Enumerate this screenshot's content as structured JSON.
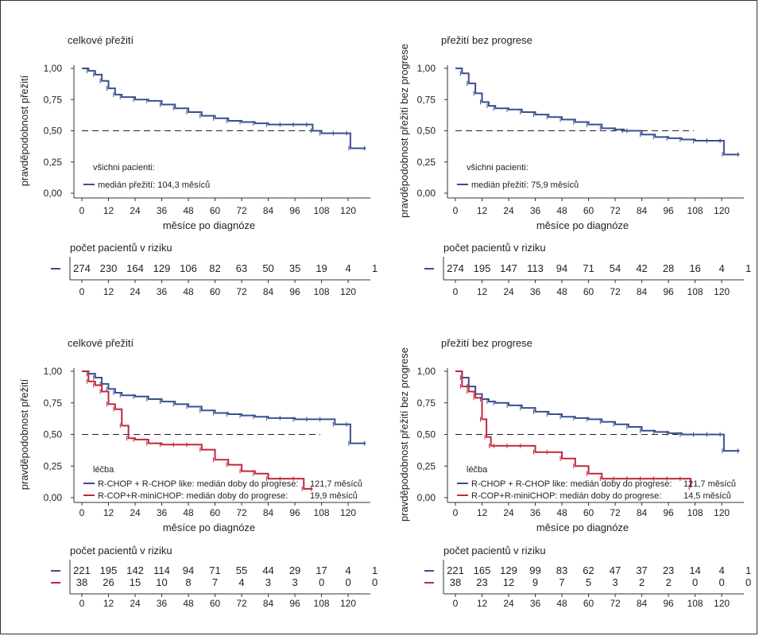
{
  "chart_data": [
    {
      "type": "line",
      "title": "celkové přežití",
      "xlabel": "měsíce po diagnóze",
      "ylabel": "pravděpodobnost přežití",
      "xlim": [
        0,
        130
      ],
      "ylim": [
        0,
        1
      ],
      "x_ticks": [
        "0",
        "12",
        "24",
        "36",
        "48",
        "60",
        "72",
        "84",
        "96",
        "108",
        "120"
      ],
      "y_ticks": [
        "0,00",
        "0,25",
        "0,50",
        "0,75",
        "1,00"
      ],
      "reference_line_y": 0.5,
      "legend": {
        "header": "všichni pacienti:",
        "entries": [
          {
            "label": "medián přežití: 104,3 měsíců",
            "value": ""
          }
        ]
      },
      "series": [
        {
          "name": "medián přežití: 104,3 měsíců",
          "color": "#3a4f8f",
          "x": [
            0,
            3,
            6,
            9,
            12,
            15,
            18,
            24,
            30,
            36,
            42,
            48,
            54,
            60,
            66,
            72,
            78,
            84,
            90,
            96,
            102,
            104,
            108,
            114,
            120,
            121,
            128
          ],
          "y": [
            1.0,
            0.98,
            0.95,
            0.9,
            0.84,
            0.79,
            0.77,
            0.75,
            0.74,
            0.71,
            0.68,
            0.65,
            0.62,
            0.6,
            0.58,
            0.57,
            0.56,
            0.55,
            0.55,
            0.55,
            0.55,
            0.5,
            0.48,
            0.48,
            0.48,
            0.36,
            0.36
          ]
        }
      ],
      "risk_table": {
        "title": "počet pacientů v riziku",
        "rows": [
          {
            "color": "#3a4f8f",
            "values": [
              "274",
              "230",
              "164",
              "129",
              "106",
              "82",
              "63",
              "50",
              "35",
              "19",
              "4",
              "1"
            ]
          }
        ]
      }
    },
    {
      "type": "line",
      "title": "přežití bez progrese",
      "xlabel": "měsíce po diagnóze",
      "ylabel": "pravděpodobnost přežití bez progrese",
      "xlim": [
        0,
        130
      ],
      "ylim": [
        0,
        1
      ],
      "x_ticks": [
        "0",
        "12",
        "24",
        "36",
        "48",
        "60",
        "72",
        "84",
        "96",
        "108",
        "120"
      ],
      "y_ticks": [
        "0,00",
        "0,25",
        "0,50",
        "0,75",
        "1,00"
      ],
      "reference_line_y": 0.5,
      "legend": {
        "header": "všichni pacienti:",
        "entries": [
          {
            "label": "medián přežití: 75,9 měsíců",
            "value": ""
          }
        ]
      },
      "series": [
        {
          "name": "medián přežití: 75,9 měsíců",
          "color": "#3a4f8f",
          "x": [
            0,
            3,
            6,
            9,
            12,
            15,
            18,
            24,
            30,
            36,
            42,
            48,
            54,
            60,
            66,
            72,
            76,
            78,
            84,
            90,
            96,
            102,
            108,
            114,
            120,
            121,
            128
          ],
          "y": [
            1.0,
            0.96,
            0.88,
            0.8,
            0.73,
            0.7,
            0.68,
            0.67,
            0.65,
            0.63,
            0.61,
            0.59,
            0.57,
            0.55,
            0.52,
            0.51,
            0.5,
            0.5,
            0.47,
            0.45,
            0.44,
            0.43,
            0.42,
            0.42,
            0.42,
            0.31,
            0.31
          ]
        }
      ],
      "risk_table": {
        "title": "počet pacientů v riziku",
        "rows": [
          {
            "color": "#3a4f8f",
            "values": [
              "274",
              "195",
              "147",
              "113",
              "94",
              "71",
              "54",
              "42",
              "28",
              "16",
              "4",
              "1"
            ]
          }
        ]
      }
    },
    {
      "type": "line",
      "title": "celkové přežití",
      "xlabel": "měsíce po diagnóze",
      "ylabel": "pravděpodobnost přežití",
      "xlim": [
        0,
        130
      ],
      "ylim": [
        0,
        1
      ],
      "x_ticks": [
        "0",
        "12",
        "24",
        "36",
        "48",
        "60",
        "72",
        "84",
        "96",
        "108",
        "120"
      ],
      "y_ticks": [
        "0,00",
        "0,25",
        "0,50",
        "0,75",
        "1,00"
      ],
      "reference_line_y": 0.5,
      "legend": {
        "header": "léčba",
        "entries": [
          {
            "label": "R-CHOP + R-CHOP like: medián doby do progrese:",
            "value": "121,7 měsíců"
          },
          {
            "label": "R-COP+R-miniCHOP: medián doby do progrese:",
            "value": "19,9 měsíců"
          }
        ]
      },
      "series": [
        {
          "name": "R-CHOP + R-CHOP like: medián doby do progrese:",
          "color": "#3a4f8f",
          "x": [
            0,
            3,
            6,
            9,
            12,
            15,
            18,
            24,
            30,
            36,
            42,
            48,
            54,
            60,
            66,
            72,
            78,
            84,
            90,
            96,
            102,
            108,
            114,
            120,
            121,
            128
          ],
          "y": [
            1.0,
            0.98,
            0.95,
            0.9,
            0.86,
            0.83,
            0.81,
            0.8,
            0.78,
            0.76,
            0.74,
            0.72,
            0.69,
            0.67,
            0.66,
            0.65,
            0.64,
            0.63,
            0.63,
            0.62,
            0.62,
            0.62,
            0.58,
            0.58,
            0.43,
            0.43
          ]
        },
        {
          "name": "R-COP+R-miniCHOP: medián doby do progrese:",
          "color": "#c0283a",
          "x": [
            0,
            3,
            6,
            9,
            12,
            15,
            18,
            21,
            24,
            30,
            36,
            42,
            48,
            54,
            60,
            66,
            72,
            78,
            84,
            90,
            96,
            100,
            104
          ],
          "y": [
            1.0,
            0.92,
            0.89,
            0.84,
            0.74,
            0.7,
            0.57,
            0.47,
            0.46,
            0.43,
            0.42,
            0.42,
            0.42,
            0.38,
            0.3,
            0.26,
            0.21,
            0.19,
            0.15,
            0.15,
            0.15,
            0.07,
            0.07
          ]
        }
      ],
      "risk_table": {
        "title": "počet pacientů v riziku",
        "rows": [
          {
            "color": "#3a4f8f",
            "values": [
              "221",
              "195",
              "142",
              "114",
              "94",
              "71",
              "55",
              "44",
              "29",
              "17",
              "4",
              "1"
            ]
          },
          {
            "color": "#c0283a",
            "values": [
              "38",
              "26",
              "15",
              "10",
              "8",
              "7",
              "4",
              "3",
              "3",
              "0",
              "0",
              "0"
            ]
          }
        ]
      }
    },
    {
      "type": "line",
      "title": "přežití bez progrese",
      "xlabel": "měsíce po diagnóze",
      "ylabel": "pravděpodobnost přežití bez progrese",
      "xlim": [
        0,
        130
      ],
      "ylim": [
        0,
        1
      ],
      "x_ticks": [
        "0",
        "12",
        "24",
        "36",
        "48",
        "60",
        "72",
        "84",
        "96",
        "108",
        "120"
      ],
      "y_ticks": [
        "0,00",
        "0,25",
        "0,50",
        "0,75",
        "1,00"
      ],
      "reference_line_y": 0.5,
      "legend": {
        "header": "léčba",
        "entries": [
          {
            "label": "R-CHOP + R-CHOP like: medián doby do progrese:",
            "value": "121,7 měsíců"
          },
          {
            "label": "R-COP+R-miniCHOP: medián doby do progrese:",
            "value": "14,5 měsíců"
          }
        ]
      },
      "series": [
        {
          "name": "R-CHOP + R-CHOP like: medián doby do progrese:",
          "color": "#3a4f8f",
          "x": [
            0,
            3,
            6,
            9,
            12,
            15,
            18,
            24,
            30,
            36,
            42,
            48,
            54,
            60,
            66,
            72,
            78,
            84,
            90,
            96,
            102,
            108,
            114,
            120,
            121,
            128
          ],
          "y": [
            1.0,
            0.95,
            0.88,
            0.82,
            0.78,
            0.76,
            0.75,
            0.73,
            0.71,
            0.68,
            0.66,
            0.64,
            0.63,
            0.62,
            0.6,
            0.58,
            0.56,
            0.53,
            0.52,
            0.51,
            0.5,
            0.5,
            0.5,
            0.5,
            0.37,
            0.37
          ]
        },
        {
          "name": "R-COP+R-miniCHOP: medián doby do progrese:",
          "color": "#c0283a",
          "x": [
            0,
            3,
            6,
            9,
            12,
            14,
            16,
            18,
            24,
            30,
            36,
            42,
            48,
            54,
            60,
            66,
            72,
            78,
            84,
            90,
            96,
            102,
            106
          ],
          "y": [
            1.0,
            0.88,
            0.84,
            0.79,
            0.62,
            0.48,
            0.41,
            0.41,
            0.41,
            0.41,
            0.36,
            0.36,
            0.31,
            0.25,
            0.19,
            0.15,
            0.15,
            0.15,
            0.15,
            0.15,
            0.15,
            0.15,
            0.08
          ]
        }
      ],
      "risk_table": {
        "title": "počet pacientů v riziku",
        "rows": [
          {
            "color": "#3a4f8f",
            "values": [
              "221",
              "165",
              "129",
              "99",
              "83",
              "62",
              "47",
              "37",
              "23",
              "14",
              "4",
              "1"
            ]
          },
          {
            "color": "#c0283a",
            "values": [
              "38",
              "23",
              "12",
              "9",
              "7",
              "5",
              "3",
              "2",
              "2",
              "0",
              "0",
              "0"
            ]
          }
        ]
      }
    }
  ]
}
